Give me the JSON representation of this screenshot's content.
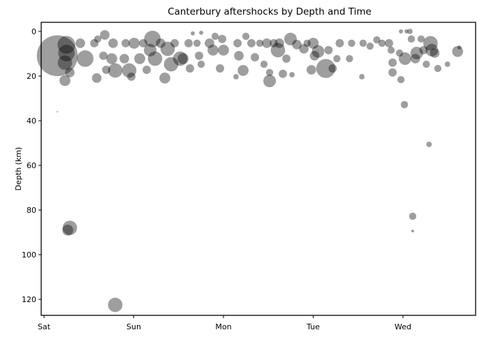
{
  "chart_data": {
    "type": "scatter",
    "title": "Canterbury aftershocks by Depth and Time",
    "xlabel": "",
    "ylabel": "Depth (km)",
    "x_tick_labels": [
      "Sat",
      "Sun",
      "Mon",
      "Tue",
      "Wed"
    ],
    "y_ticks": [
      0,
      20,
      40,
      60,
      80,
      100,
      120
    ],
    "y_inverted": true,
    "ylim": [
      128,
      -4
    ],
    "xlim": [
      "Sat 00:00",
      "Wed 19:30"
    ],
    "grid": false,
    "marker_color": "#000000",
    "marker_alpha": 0.38,
    "point_fields": [
      "time",
      "depth_km",
      "magnitude_estimate"
    ],
    "points": [
      [
        "Sat 03:33",
        10.9,
        5.7
      ],
      [
        "Sat 06:00",
        6,
        4.5
      ],
      [
        "Sat 06:00",
        9.7,
        4.4
      ],
      [
        "Sat 05:36",
        14,
        4.2
      ],
      [
        "Sat 06:55",
        18.4,
        3.6
      ],
      [
        "Sat 05:36",
        22,
        3.8
      ],
      [
        "Sat 06:55",
        88,
        4.2
      ],
      [
        "Sat 06:21",
        89,
        3.8
      ],
      [
        "Sat 03:33",
        36,
        0.8
      ],
      [
        "Sat 09:43",
        5.3,
        3.6
      ],
      [
        "Sat 11:01",
        12.2,
        4.4
      ],
      [
        "Sat 13:27",
        5.3,
        3.4
      ],
      [
        "Sat 14:06",
        20.9,
        3.6
      ],
      [
        "Sat 14:23",
        3.4,
        3.2
      ],
      [
        "Sat 16:15",
        1.6,
        3.6
      ],
      [
        "Sat 15:53",
        10.9,
        3.4
      ],
      [
        "Sat 16:38",
        17.2,
        3.4
      ],
      [
        "Sat 18:29",
        5.3,
        3.6
      ],
      [
        "Sat 18:07",
        12.2,
        3.8
      ],
      [
        "Sat 19:03",
        17.5,
        4.2
      ],
      [
        "Sat 19:03",
        122.5,
        4.2
      ],
      [
        "Sat 21:29",
        12.2,
        3.6
      ],
      [
        "Sat 22:47",
        17.5,
        4.2
      ],
      [
        "Sat 21:51",
        5.3,
        3.4
      ],
      [
        "Sun 00:06",
        5.3,
        3.8
      ],
      [
        "Sat 23:21",
        20.3,
        3.4
      ],
      [
        "Sun 01:36",
        12.2,
        3.8
      ],
      [
        "Sun 02:32",
        5.3,
        3.4
      ],
      [
        "Sun 03:28",
        17.2,
        3.4
      ],
      [
        "Sun 04:24",
        8.4,
        4.0
      ],
      [
        "Sun 05:00",
        3.4,
        4.4
      ],
      [
        "Sun 05:42",
        12.2,
        4.2
      ],
      [
        "Sun 07:12",
        5.3,
        3.6
      ],
      [
        "Sun 08:19",
        20.9,
        3.8
      ],
      [
        "Sun 09:04",
        7.8,
        4.2
      ],
      [
        "Sun 10:00",
        14.7,
        4.2
      ],
      [
        "Sun 10:57",
        5.3,
        3.4
      ],
      [
        "Sun 12:26",
        12.2,
        4.2
      ],
      [
        "Sun 13:11",
        12.2,
        3.8
      ],
      [
        "Sun 14:40",
        5.3,
        3.4
      ],
      [
        "Sun 15:02",
        16.6,
        3.4
      ],
      [
        "Sun 15:47",
        0.9,
        2.4
      ],
      [
        "Sun 16:55",
        5.3,
        3.2
      ],
      [
        "Sun 17:28",
        10.9,
        3.4
      ],
      [
        "Sun 18:02",
        0.6,
        2.4
      ],
      [
        "Sun 18:02",
        14.7,
        3.2
      ],
      [
        "Sun 20:16",
        5.3,
        3.6
      ],
      [
        "Sun 21:12",
        8.4,
        3.8
      ],
      [
        "Sun 21:46",
        2.2,
        3.2
      ],
      [
        "Sun 23:04",
        16.6,
        3.4
      ],
      [
        "Mon 00:00",
        8.4,
        3.8
      ],
      [
        "Sun 23:38",
        3.4,
        3.4
      ],
      [
        "Mon 03:21",
        20.3,
        2.8
      ],
      [
        "Mon 03:45",
        5.3,
        3.4
      ],
      [
        "Mon 04:07",
        10.9,
        3.6
      ],
      [
        "Mon 05:15",
        17.5,
        3.8
      ],
      [
        "Mon 06:00",
        2.2,
        3.2
      ],
      [
        "Mon 07:28",
        5.3,
        3.4
      ],
      [
        "Mon 08:24",
        11.6,
        3.4
      ],
      [
        "Mon 09:43",
        5.3,
        3.2
      ],
      [
        "Mon 10:50",
        14.7,
        3.2
      ],
      [
        "Mon 11:35",
        5.3,
        3.6
      ],
      [
        "Mon 12:20",
        22.2,
        4.0
      ],
      [
        "Mon 12:20",
        18.4,
        3.2
      ],
      [
        "Mon 13:27",
        5.3,
        3.4
      ],
      [
        "Mon 14:34",
        8.4,
        4.2
      ],
      [
        "Mon 14:57",
        5.3,
        3.6
      ],
      [
        "Mon 15:53",
        19,
        3.4
      ],
      [
        "Mon 16:49",
        12.2,
        3.4
      ],
      [
        "Mon 17:55",
        3.4,
        4.0
      ],
      [
        "Mon 19:37",
        5.9,
        3.6
      ],
      [
        "Mon 18:19",
        19.4,
        2.8
      ],
      [
        "Mon 21:30",
        7.8,
        3.6
      ],
      [
        "Mon 22:22",
        5.3,
        3.2
      ],
      [
        "Mon 23:30",
        17.2,
        3.6
      ],
      [
        "Tue 00:00",
        5.3,
        3.8
      ],
      [
        "Tue 00:22",
        10.9,
        3.6
      ],
      [
        "Tue 01:18",
        9,
        4.0
      ],
      [
        "Tue 03:21",
        16.6,
        4.6
      ],
      [
        "Tue 04:05",
        8.4,
        3.4
      ],
      [
        "Tue 05:12",
        16.6,
        3.4
      ],
      [
        "Tue 06:20",
        12.2,
        3.2
      ],
      [
        "Tue 07:05",
        5.3,
        3.4
      ],
      [
        "Tue 09:42",
        12.2,
        3.2
      ],
      [
        "Tue 10:16",
        5.3,
        3.2
      ],
      [
        "Tue 13:00",
        20.3,
        2.8
      ],
      [
        "Tue 13:20",
        5.3,
        3.2
      ],
      [
        "Tue 15:12",
        6.6,
        3.2
      ],
      [
        "Tue 17:00",
        3.8,
        3.2
      ],
      [
        "Tue 18:24",
        5.3,
        3.2
      ],
      [
        "Tue 20:16",
        5.3,
        3.4
      ],
      [
        "Tue 20:50",
        8.4,
        3.2
      ],
      [
        "Tue 21:13",
        14,
        3.4
      ],
      [
        "Tue 21:13",
        18.4,
        3.4
      ],
      [
        "Tue 23:05",
        9.7,
        3.2
      ],
      [
        "Tue 23:27",
        0,
        2.4
      ],
      [
        "Tue 23:27",
        21.6,
        3.2
      ],
      [
        "Wed 00:23",
        32.8,
        3.2
      ],
      [
        "Wed 00:56",
        0,
        2.4
      ],
      [
        "Wed 00:34",
        12.2,
        4.0
      ],
      [
        "Wed 01:52",
        0,
        2.8
      ],
      [
        "Wed 02:14",
        3.4,
        3.2
      ],
      [
        "Wed 02:36",
        82.8,
        3.2
      ],
      [
        "Wed 02:36",
        89.4,
        1.8
      ],
      [
        "Wed 03:19",
        12.2,
        3.6
      ],
      [
        "Wed 03:41",
        9.7,
        4.0
      ],
      [
        "Wed 04:51",
        3.4,
        3.2
      ],
      [
        "Wed 05:30",
        8.4,
        3.4
      ],
      [
        "Wed 06:15",
        14.7,
        3.2
      ],
      [
        "Wed 06:58",
        50.6,
        2.8
      ],
      [
        "Wed 07:22",
        5.3,
        4.2
      ],
      [
        "Wed 07:43",
        8.4,
        4.0
      ],
      [
        "Wed 08:29",
        9.7,
        3.6
      ],
      [
        "Wed 09:19",
        16.6,
        3.2
      ],
      [
        "Wed 11:54",
        14.7,
        2.8
      ],
      [
        "Wed 14:37",
        9,
        3.8
      ],
      [
        "Wed 15:05",
        7.2,
        2.4
      ]
    ]
  }
}
